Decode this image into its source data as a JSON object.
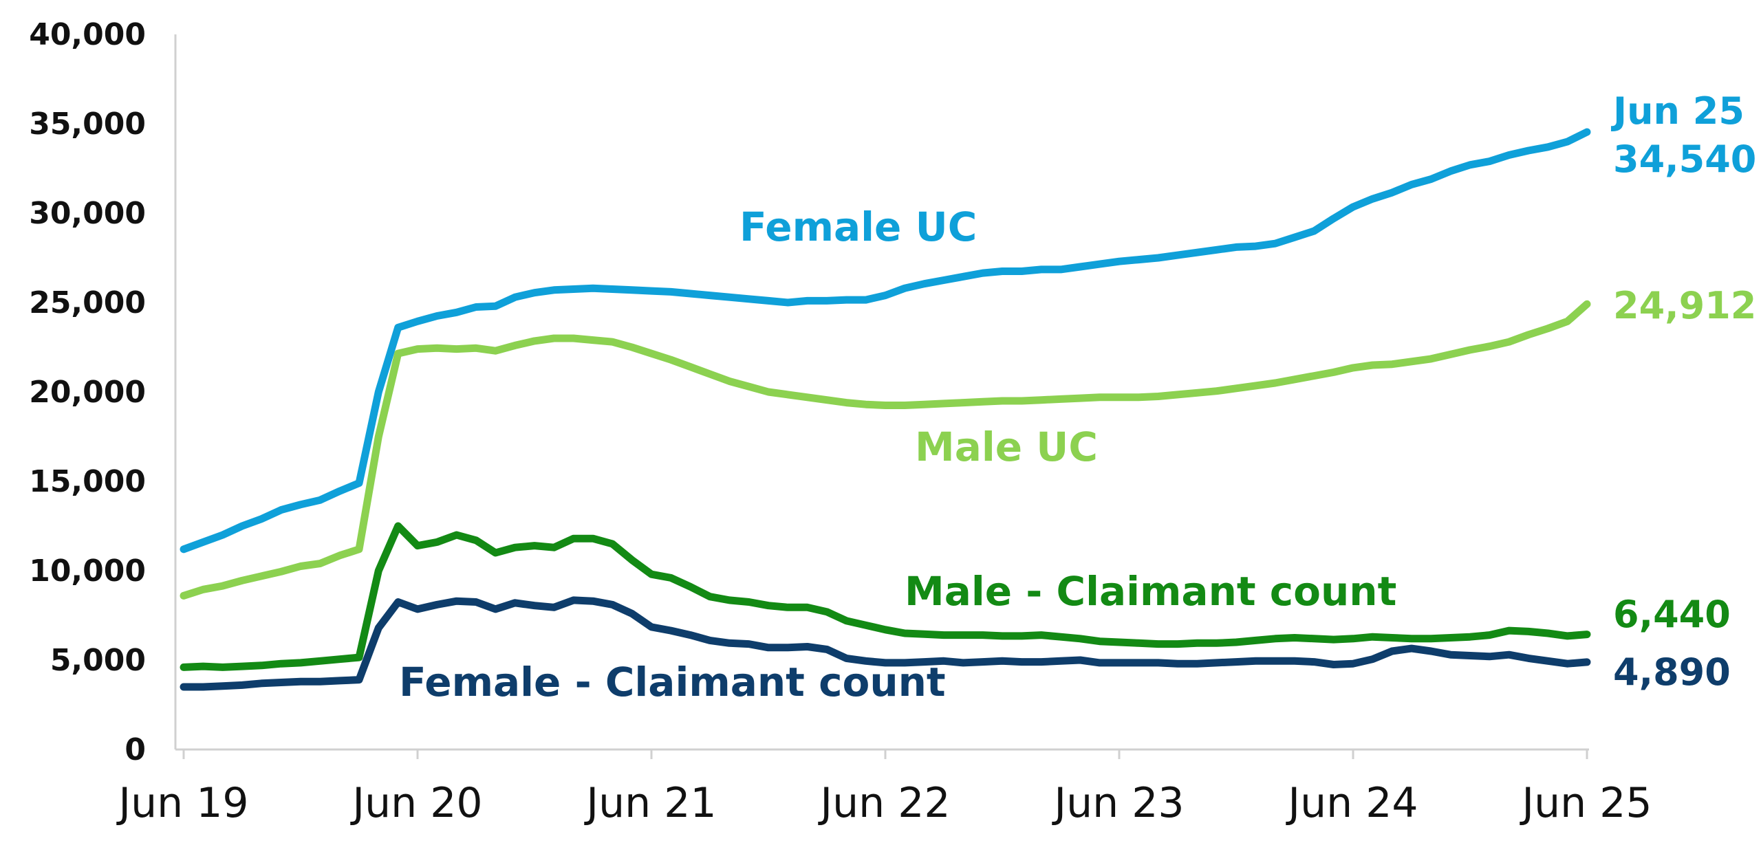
{
  "chart_data": {
    "type": "line",
    "title": "",
    "xlabel": "",
    "ylabel": "",
    "ylim": [
      0,
      40000
    ],
    "yticks": [
      "0",
      "5,000",
      "10,000",
      "15,000",
      "20,000",
      "25,000",
      "30,000",
      "35,000",
      "40,000"
    ],
    "ytick_values": [
      0,
      5000,
      10000,
      15000,
      20000,
      25000,
      30000,
      35000,
      40000
    ],
    "xlim": [
      0,
      73
    ],
    "xticks": [
      "Jun 19",
      "Jun 20",
      "Jun 21",
      "Jun 22",
      "Jun 23",
      "Jun 24",
      "Jun 25"
    ],
    "xtick_positions": [
      0,
      12,
      24,
      36,
      48,
      60,
      72
    ],
    "x_note_end": "Jun 25",
    "grid": false,
    "legend": "none",
    "series": [
      {
        "name": "Female UC",
        "color": "#0FA0D9",
        "end_label": "34,540",
        "end_period": "Jun 25",
        "values": [
          11200,
          11600,
          12000,
          12500,
          12900,
          13400,
          13700,
          13950,
          14450,
          14900,
          20000,
          23600,
          23950,
          24250,
          24450,
          24750,
          24800,
          25300,
          25550,
          25700,
          25750,
          25800,
          25750,
          25700,
          25650,
          25600,
          25500,
          25400,
          25300,
          25200,
          25100,
          25000,
          25100,
          25100,
          25150,
          25150,
          25400,
          25800,
          26050,
          26250,
          26450,
          26650,
          26750,
          26750,
          26850,
          26850,
          27000,
          27150,
          27300,
          27400,
          27500,
          27650,
          27800,
          27950,
          28100,
          28150,
          28300,
          28650,
          29000,
          29700,
          30350,
          30800,
          31150,
          31600,
          31900,
          32350,
          32700,
          32900,
          33250,
          33500,
          33700,
          34000,
          34540
        ]
      },
      {
        "name": "Male UC",
        "color": "#8CD150",
        "end_label": "24,912",
        "end_period": "Jun 25",
        "values": [
          8600,
          8950,
          9150,
          9450,
          9700,
          9950,
          10250,
          10400,
          10850,
          11200,
          17500,
          22150,
          22400,
          22450,
          22400,
          22450,
          22300,
          22600,
          22850,
          23000,
          23000,
          22900,
          22800,
          22500,
          22150,
          21800,
          21400,
          21000,
          20600,
          20300,
          20000,
          19850,
          19700,
          19550,
          19400,
          19300,
          19250,
          19250,
          19300,
          19350,
          19400,
          19450,
          19500,
          19500,
          19550,
          19600,
          19650,
          19700,
          19700,
          19700,
          19750,
          19850,
          19950,
          20050,
          20200,
          20350,
          20500,
          20700,
          20900,
          21100,
          21350,
          21500,
          21550,
          21700,
          21850,
          22100,
          22350,
          22550,
          22800,
          23200,
          23550,
          23950,
          24912
        ]
      },
      {
        "name": "Male - Claimant count",
        "color": "#138A14",
        "end_label": "6,440",
        "end_period": "Jun 25",
        "values": [
          4600,
          4650,
          4600,
          4650,
          4700,
          4800,
          4850,
          4950,
          5050,
          5150,
          10000,
          12500,
          11400,
          11600,
          12000,
          11700,
          11000,
          11300,
          11400,
          11300,
          11800,
          11800,
          11500,
          10600,
          9800,
          9600,
          9100,
          8550,
          8350,
          8250,
          8050,
          7950,
          7950,
          7700,
          7200,
          6950,
          6700,
          6500,
          6450,
          6400,
          6400,
          6400,
          6350,
          6350,
          6400,
          6300,
          6200,
          6050,
          6000,
          5950,
          5900,
          5900,
          5950,
          5950,
          6000,
          6100,
          6200,
          6250,
          6200,
          6150,
          6200,
          6300,
          6250,
          6200,
          6200,
          6250,
          6300,
          6400,
          6650,
          6600,
          6500,
          6350,
          6440
        ]
      },
      {
        "name": "Female - Claimant count",
        "color": "#0E3D6B",
        "end_label": "4,890",
        "end_period": "Jun 25",
        "values": [
          3500,
          3500,
          3550,
          3600,
          3700,
          3750,
          3800,
          3800,
          3850,
          3900,
          6800,
          8250,
          7850,
          8100,
          8300,
          8250,
          7850,
          8200,
          8050,
          7950,
          8350,
          8300,
          8100,
          7600,
          6850,
          6650,
          6400,
          6100,
          5950,
          5900,
          5700,
          5700,
          5750,
          5600,
          5100,
          4950,
          4850,
          4850,
          4900,
          4950,
          4850,
          4900,
          4950,
          4900,
          4900,
          4950,
          5000,
          4850,
          4850,
          4850,
          4850,
          4800,
          4800,
          4850,
          4900,
          4950,
          4950,
          4950,
          4900,
          4750,
          4800,
          5050,
          5500,
          5650,
          5500,
          5300,
          5250,
          5200,
          5300,
          5100,
          4950,
          4800,
          4890
        ]
      }
    ]
  }
}
